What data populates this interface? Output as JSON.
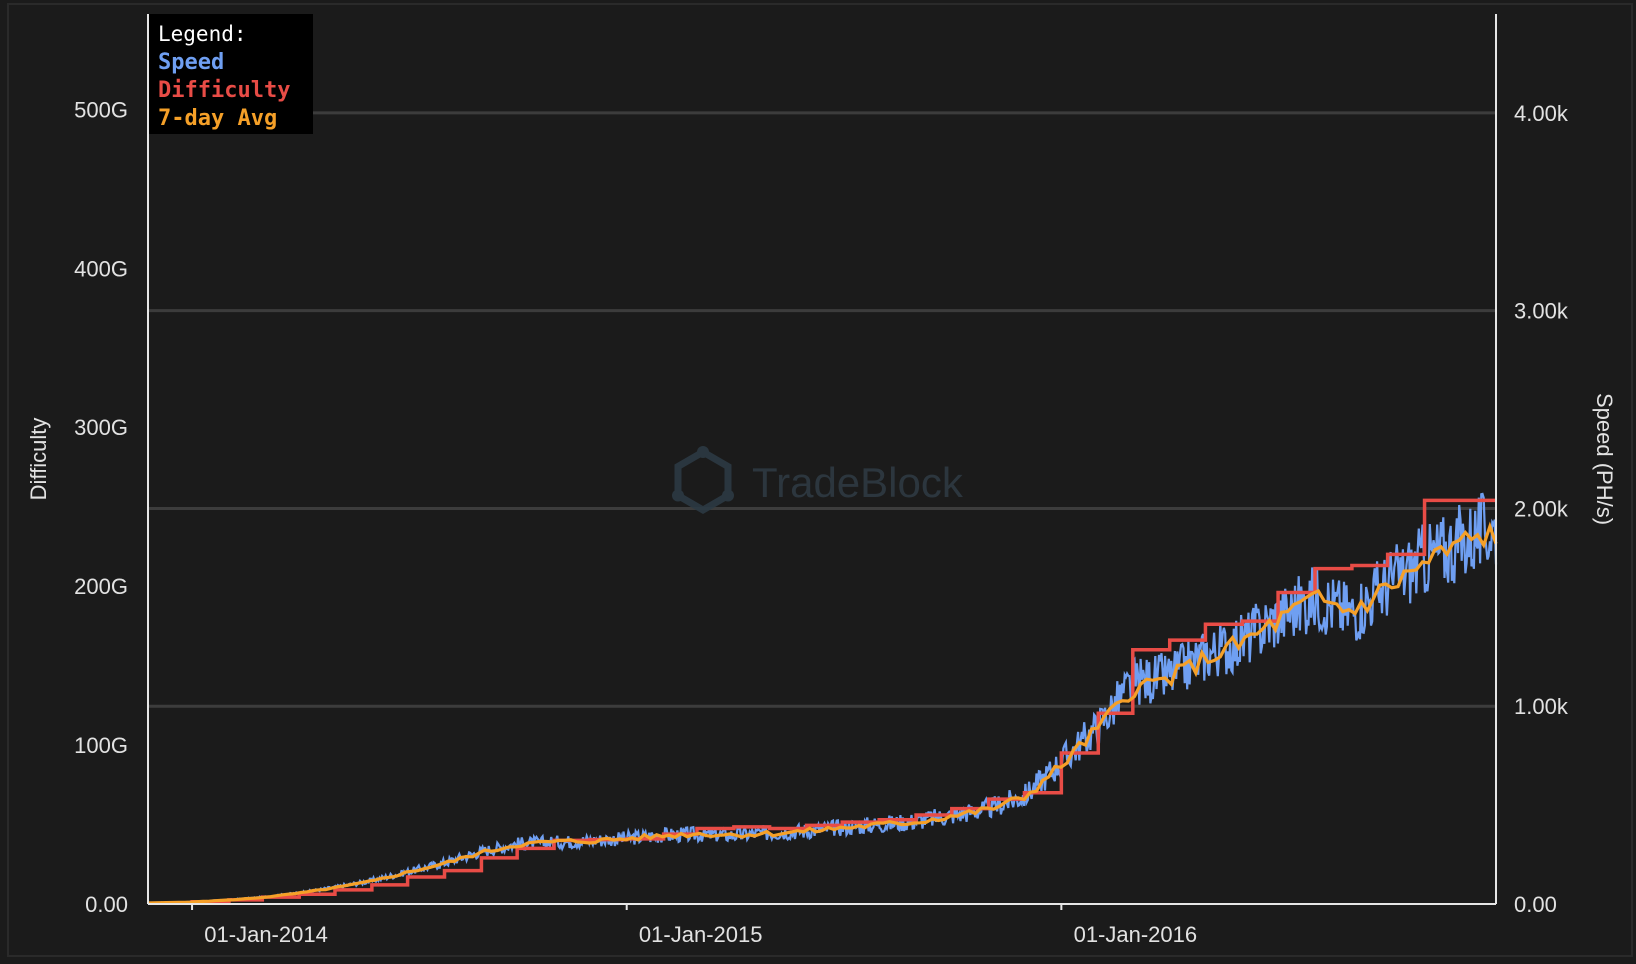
{
  "watermark": {
    "text": "TradeBlock"
  },
  "legend": {
    "title": "Legend:",
    "items": [
      {
        "key": "speed",
        "label": "Speed",
        "color": "#6f9ff2"
      },
      {
        "key": "difficulty",
        "label": "Difficulty",
        "color": "#e84c46"
      },
      {
        "key": "avg7",
        "label": "7-day Avg",
        "color": "#f5a028"
      }
    ]
  },
  "chart_data": {
    "type": "line",
    "x_range": [
      "2013-11-25",
      "2016-12-31"
    ],
    "x_ticks": [
      {
        "date": "2014-01-01",
        "label": "01-Jan-2014"
      },
      {
        "date": "2015-01-01",
        "label": "01-Jan-2015"
      },
      {
        "date": "2016-01-01",
        "label": "01-Jan-2016"
      }
    ],
    "y_left": {
      "label": "Difficulty",
      "range": [
        0,
        560
      ],
      "unit_label": "G",
      "ticks": [
        {
          "value": 0,
          "label": "0.00"
        },
        {
          "value": 100,
          "label": "100G"
        },
        {
          "value": 200,
          "label": "200G"
        },
        {
          "value": 300,
          "label": "300G"
        },
        {
          "value": 400,
          "label": "400G"
        },
        {
          "value": 500,
          "label": "500G"
        }
      ]
    },
    "y_right": {
      "label": "Speed (PH/s)",
      "range": [
        0,
        4500
      ],
      "ticks": [
        {
          "value": 0,
          "label": "0.00"
        },
        {
          "value": 1000,
          "label": "1.00k"
        },
        {
          "value": 2000,
          "label": "2.00k"
        },
        {
          "value": 3000,
          "label": "3.00k"
        },
        {
          "value": 4000,
          "label": "4.00k"
        }
      ]
    },
    "grid": {
      "horizontal": true,
      "vertical": false
    },
    "legend_position": "top-left",
    "series": [
      {
        "name": "Difficulty",
        "axis": "left",
        "style": "step",
        "color": "#e84c46",
        "points": [
          [
            "2013-11-25",
            0.5
          ],
          [
            "2014-01-01",
            1.4
          ],
          [
            "2014-02-01",
            2.6
          ],
          [
            "2014-03-01",
            4.3
          ],
          [
            "2014-04-01",
            6.1
          ],
          [
            "2014-05-01",
            8.9
          ],
          [
            "2014-06-01",
            12.0
          ],
          [
            "2014-07-01",
            17.0
          ],
          [
            "2014-08-01",
            21.0
          ],
          [
            "2014-09-01",
            29.0
          ],
          [
            "2014-10-01",
            35.0
          ],
          [
            "2014-11-01",
            40.0
          ],
          [
            "2014-12-01",
            40.5
          ],
          [
            "2015-01-01",
            41.0
          ],
          [
            "2015-02-01",
            44.0
          ],
          [
            "2015-03-01",
            47.5
          ],
          [
            "2015-04-01",
            48.5
          ],
          [
            "2015-05-01",
            47.5
          ],
          [
            "2015-06-01",
            49.5
          ],
          [
            "2015-07-01",
            51.5
          ],
          [
            "2015-08-01",
            53.0
          ],
          [
            "2015-09-01",
            56.0
          ],
          [
            "2015-10-01",
            60.0
          ],
          [
            "2015-11-01",
            66.0
          ],
          [
            "2015-12-01",
            70.0
          ],
          [
            "2016-01-01",
            95.0
          ],
          [
            "2016-02-01",
            120.0
          ],
          [
            "2016-03-01",
            160.0
          ],
          [
            "2016-04-01",
            166.0
          ],
          [
            "2016-05-01",
            176.0
          ],
          [
            "2016-06-01",
            178.0
          ],
          [
            "2016-07-01",
            196.0
          ],
          [
            "2016-08-01",
            211.0
          ],
          [
            "2016-09-01",
            213.0
          ],
          [
            "2016-10-01",
            220.0
          ],
          [
            "2016-11-01",
            254.0
          ],
          [
            "2016-12-01",
            254.0
          ],
          [
            "2016-12-31",
            254.0
          ]
        ]
      },
      {
        "name": "7-day Avg",
        "axis": "right",
        "style": "line",
        "color": "#f5a028",
        "points": [
          [
            "2013-11-25",
            5
          ],
          [
            "2014-01-01",
            10
          ],
          [
            "2014-02-01",
            20
          ],
          [
            "2014-03-01",
            33
          ],
          [
            "2014-04-01",
            55
          ],
          [
            "2014-05-01",
            82
          ],
          [
            "2014-06-01",
            115
          ],
          [
            "2014-07-01",
            160
          ],
          [
            "2014-08-01",
            205
          ],
          [
            "2014-09-01",
            260
          ],
          [
            "2014-10-01",
            300
          ],
          [
            "2014-11-01",
            315
          ],
          [
            "2014-12-01",
            318
          ],
          [
            "2015-01-01",
            330
          ],
          [
            "2015-02-01",
            345
          ],
          [
            "2015-03-01",
            355
          ],
          [
            "2015-04-01",
            350
          ],
          [
            "2015-05-01",
            356
          ],
          [
            "2015-06-01",
            368
          ],
          [
            "2015-07-01",
            385
          ],
          [
            "2015-08-01",
            400
          ],
          [
            "2015-09-01",
            415
          ],
          [
            "2015-10-01",
            445
          ],
          [
            "2015-11-01",
            478
          ],
          [
            "2015-12-01",
            540
          ],
          [
            "2016-01-01",
            700
          ],
          [
            "2016-02-01",
            890
          ],
          [
            "2016-03-01",
            1090
          ],
          [
            "2016-04-01",
            1140
          ],
          [
            "2016-05-01",
            1240
          ],
          [
            "2016-06-01",
            1320
          ],
          [
            "2016-07-01",
            1430
          ],
          [
            "2016-08-01",
            1540
          ],
          [
            "2016-09-01",
            1480
          ],
          [
            "2016-10-01",
            1600
          ],
          [
            "2016-11-01",
            1720
          ],
          [
            "2016-12-01",
            1820
          ],
          [
            "2016-12-31",
            1880
          ]
        ]
      },
      {
        "name": "Speed",
        "axis": "right",
        "style": "noisy-line",
        "color": "#6f9ff2",
        "points": [
          [
            "2013-11-25",
            6
          ],
          [
            "2014-01-01",
            10
          ],
          [
            "2014-02-01",
            21
          ],
          [
            "2014-03-01",
            34
          ],
          [
            "2014-04-01",
            56
          ],
          [
            "2014-05-01",
            84
          ],
          [
            "2014-06-01",
            118
          ],
          [
            "2014-07-01",
            162
          ],
          [
            "2014-08-01",
            208
          ],
          [
            "2014-09-01",
            265
          ],
          [
            "2014-10-01",
            305
          ],
          [
            "2014-11-01",
            312
          ],
          [
            "2014-12-01",
            320
          ],
          [
            "2015-01-01",
            332
          ],
          [
            "2015-02-01",
            348
          ],
          [
            "2015-03-01",
            352
          ],
          [
            "2015-04-01",
            348
          ],
          [
            "2015-05-01",
            360
          ],
          [
            "2015-06-01",
            370
          ],
          [
            "2015-07-01",
            388
          ],
          [
            "2015-08-01",
            402
          ],
          [
            "2015-09-01",
            418
          ],
          [
            "2015-10-01",
            448
          ],
          [
            "2015-11-01",
            482
          ],
          [
            "2015-12-01",
            545
          ],
          [
            "2016-01-01",
            720
          ],
          [
            "2016-02-01",
            900
          ],
          [
            "2016-03-01",
            1120
          ],
          [
            "2016-04-01",
            1150
          ],
          [
            "2016-05-01",
            1260
          ],
          [
            "2016-06-01",
            1330
          ],
          [
            "2016-07-01",
            1450
          ],
          [
            "2016-08-01",
            1550
          ],
          [
            "2016-09-01",
            1470
          ],
          [
            "2016-10-01",
            1620
          ],
          [
            "2016-11-01",
            1740
          ],
          [
            "2016-12-01",
            1830
          ],
          [
            "2016-12-31",
            1900
          ]
        ]
      }
    ]
  }
}
